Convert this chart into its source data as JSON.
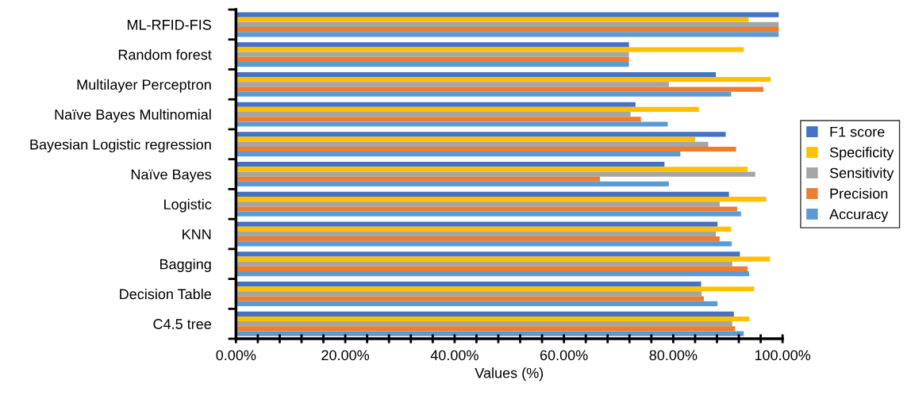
{
  "chart_data": {
    "type": "bar",
    "orientation": "horizontal",
    "xlabel": "Values (%)",
    "categories": [
      "ML-RFID-FIS",
      "Random forest",
      "Multilayer Perceptron",
      "Naïve Bayes Multinomial",
      "Bayesian Logistic regression",
      "Naïve Bayes",
      "Logistic",
      "KNN",
      "Bagging",
      "Decision Table",
      "C4.5 tree"
    ],
    "series": [
      {
        "name": "F1 score",
        "color": "#4472c4",
        "values": [
          99.3,
          71.9,
          87.8,
          73.1,
          89.6,
          78.4,
          90.2,
          88.1,
          92.2,
          85.1,
          91.1
        ]
      },
      {
        "name": "Specificity",
        "color": "#ffc000",
        "values": [
          93.8,
          92.9,
          97.8,
          84.7,
          84.0,
          93.6,
          97.0,
          90.6,
          97.7,
          94.8,
          93.9
        ]
      },
      {
        "name": "Sensitivity",
        "color": "#a5a5a5",
        "values": [
          99.3,
          71.9,
          79.2,
          72.2,
          86.4,
          95.0,
          88.5,
          87.8,
          90.8,
          85.2,
          90.8
        ]
      },
      {
        "name": "Precision",
        "color": "#ed7d31",
        "values": [
          99.3,
          71.9,
          96.5,
          74.1,
          91.5,
          66.6,
          91.7,
          88.5,
          93.6,
          85.6,
          91.3
        ]
      },
      {
        "name": "Accuracy",
        "color": "#5b9bd5",
        "values": [
          99.3,
          71.9,
          90.6,
          79.0,
          81.3,
          79.2,
          92.4,
          90.7,
          93.9,
          88.1,
          92.9
        ]
      }
    ],
    "xlim": [
      0,
      100
    ],
    "xticks": [
      {
        "value": 0,
        "label": "0.00%"
      },
      {
        "value": 4,
        "label": null
      },
      {
        "value": 8,
        "label": null
      },
      {
        "value": 12,
        "label": null
      },
      {
        "value": 16,
        "label": null
      },
      {
        "value": 20,
        "label": "20.00%"
      },
      {
        "value": 24,
        "label": null
      },
      {
        "value": 28,
        "label": null
      },
      {
        "value": 32,
        "label": null
      },
      {
        "value": 36,
        "label": null
      },
      {
        "value": 40,
        "label": "40.00%"
      },
      {
        "value": 44,
        "label": null
      },
      {
        "value": 48,
        "label": null
      },
      {
        "value": 52,
        "label": null
      },
      {
        "value": 56,
        "label": null
      },
      {
        "value": 60,
        "label": "60.00%"
      },
      {
        "value": 64,
        "label": null
      },
      {
        "value": 68,
        "label": null
      },
      {
        "value": 72,
        "label": null
      },
      {
        "value": 76,
        "label": null
      },
      {
        "value": 80,
        "label": "80.00%"
      },
      {
        "value": 84,
        "label": null
      },
      {
        "value": 88,
        "label": null
      },
      {
        "value": 92,
        "label": null
      },
      {
        "value": 96,
        "label": null
      },
      {
        "value": 100,
        "label": "100.00%"
      }
    ],
    "grid": false,
    "legend": "right"
  }
}
